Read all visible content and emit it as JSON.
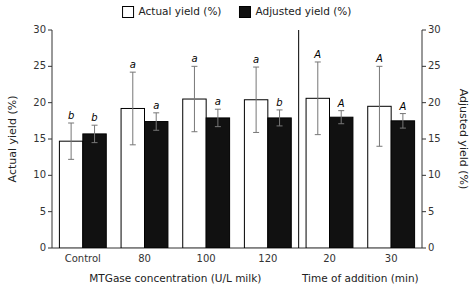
{
  "chart_data": {
    "type": "bar",
    "categories": [
      "Control",
      "80",
      "100",
      "120",
      "20",
      "30"
    ],
    "series": [
      {
        "name": "Actual yield (%)",
        "color": "#ffffff",
        "values": [
          14.7,
          19.2,
          20.5,
          20.4,
          20.6,
          19.5
        ],
        "errors": [
          2.5,
          5.0,
          4.5,
          4.5,
          5.0,
          5.5
        ],
        "annotations": [
          "b",
          "a",
          "a",
          "a",
          "A",
          "A"
        ]
      },
      {
        "name": "Adjusted yield (%)",
        "color": "#111111",
        "axis": "y2",
        "values": [
          15.7,
          17.4,
          17.9,
          17.9,
          18.0,
          17.5
        ],
        "errors": [
          1.2,
          1.2,
          1.2,
          1.1,
          0.9,
          1.0
        ],
        "annotations": [
          "b",
          "a",
          "a",
          "b",
          "A",
          "A"
        ]
      }
    ],
    "category_groups": [
      {
        "label": "MTGase concentration (U/L milk)",
        "categories": [
          "Control",
          "80",
          "100",
          "120"
        ]
      },
      {
        "label": "Time of addition (min)",
        "categories": [
          "20",
          "30"
        ]
      }
    ],
    "ylabel": "Actual yield (%)",
    "y2label": "Adjusted yield (%)",
    "ylim": [
      0,
      30
    ],
    "yticks": [
      0,
      5,
      10,
      15,
      20,
      25,
      30
    ],
    "y2lim": [
      0,
      30
    ],
    "y2ticks": [
      0,
      5,
      10,
      15,
      20,
      25,
      30
    ],
    "legend": "top"
  }
}
